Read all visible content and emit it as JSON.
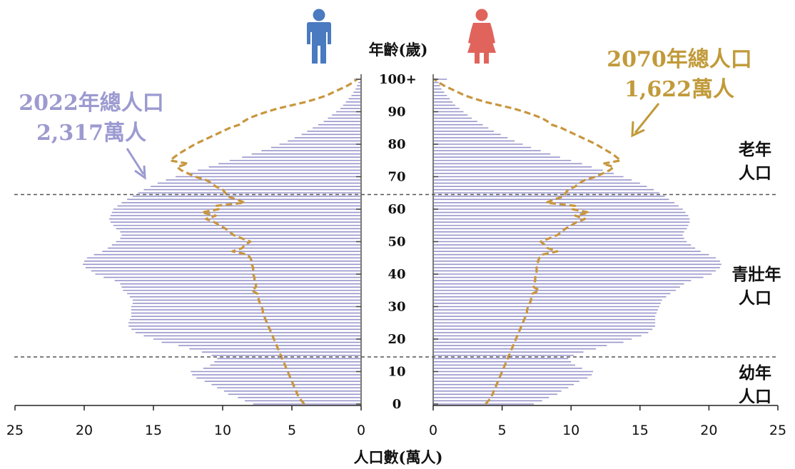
{
  "chart_data": {
    "type": "population-pyramid",
    "title": "",
    "center_axis_title": "年齡(歲)",
    "x_axis_title": "人口數(萬人)",
    "x_ticks_left": [
      "25",
      "20",
      "15",
      "10",
      "5",
      "0"
    ],
    "x_ticks_right": [
      "0",
      "5",
      "10",
      "15",
      "20",
      "25"
    ],
    "xlim": [
      0,
      25
    ],
    "age_ticks": [
      "0",
      "10",
      "20",
      "30",
      "40",
      "50",
      "60",
      "70",
      "80",
      "90",
      "100+"
    ],
    "age_range": [
      0,
      100
    ],
    "age_group_boundaries": [
      14.5,
      64.5
    ],
    "age_group_labels": [
      {
        "line1": "老年",
        "line2": "人口"
      },
      {
        "line1": "青壯年",
        "line2": "人口"
      },
      {
        "line1": "幼年",
        "line2": "人口"
      }
    ],
    "callouts": {
      "2022": {
        "line1": "2022年總人口",
        "line2": "2,317萬人"
      },
      "2070": {
        "line1": "2070年總人口",
        "line2": "1,622萬人"
      }
    },
    "colors": {
      "bars_2022": "#9896cc",
      "line_2070": "#c8963e",
      "male_icon": "#4a7ac0",
      "female_icon": "#e0645c",
      "divider": "#555555"
    },
    "series": [
      {
        "year": "2022",
        "style": "bars",
        "male": [
          7.8,
          8.4,
          8.9,
          9.6,
          9.9,
          10.4,
          10.8,
          11.3,
          11.9,
          12.2,
          12.3,
          11.4,
          10.9,
          10.6,
          10.4,
          10.8,
          11.5,
          12.4,
          13.2,
          14.4,
          15.0,
          15.7,
          16.3,
          16.6,
          16.8,
          16.8,
          16.7,
          16.6,
          16.6,
          16.6,
          16.6,
          16.5,
          16.5,
          16.7,
          16.9,
          17.2,
          17.3,
          17.4,
          17.8,
          18.6,
          19.2,
          19.5,
          19.9,
          20.1,
          20.0,
          19.8,
          19.3,
          18.7,
          18.3,
          18.0,
          17.7,
          17.4,
          17.3,
          17.4,
          17.7,
          17.9,
          18.1,
          18.2,
          18.1,
          18.0,
          17.9,
          17.6,
          17.3,
          16.9,
          16.5,
          16.1,
          15.7,
          15.2,
          14.7,
          14.1,
          13.4,
          12.6,
          11.8,
          11.0,
          10.3,
          9.5,
          8.6,
          7.9,
          7.2,
          6.5,
          5.9,
          5.3,
          4.8,
          4.3,
          3.9,
          3.5,
          3.1,
          2.7,
          2.4,
          2.1,
          1.8,
          1.5,
          1.3,
          1.1,
          0.9,
          0.7,
          0.55,
          0.4,
          0.3,
          0.2,
          0.5
        ],
        "female": [
          7.3,
          7.9,
          8.4,
          9.0,
          9.3,
          9.8,
          10.2,
          10.6,
          11.2,
          11.5,
          11.6,
          10.8,
          10.3,
          10.0,
          9.8,
          10.2,
          10.9,
          11.8,
          12.6,
          13.8,
          14.4,
          15.1,
          15.6,
          15.9,
          16.1,
          16.1,
          16.1,
          16.1,
          16.2,
          16.3,
          16.4,
          16.5,
          16.6,
          16.9,
          17.2,
          17.6,
          17.9,
          18.2,
          18.7,
          19.6,
          20.2,
          20.5,
          20.8,
          20.9,
          20.8,
          20.5,
          20.0,
          19.4,
          19.0,
          18.7,
          18.4,
          18.2,
          18.1,
          18.2,
          18.4,
          18.5,
          18.6,
          18.6,
          18.5,
          18.3,
          18.1,
          17.8,
          17.5,
          17.1,
          16.8,
          16.4,
          16.0,
          15.5,
          15.0,
          14.4,
          13.8,
          13.1,
          12.3,
          11.5,
          10.8,
          10.0,
          9.2,
          8.5,
          7.8,
          7.1,
          6.5,
          5.9,
          5.4,
          4.9,
          4.4,
          4.0,
          3.6,
          3.2,
          2.8,
          2.5,
          2.2,
          1.9,
          1.6,
          1.4,
          1.2,
          1.0,
          0.8,
          0.6,
          0.5,
          0.4,
          1.0
        ]
      },
      {
        "year": "2070",
        "style": "dashed-line",
        "male": [
          4.1,
          4.3,
          4.5,
          4.6,
          4.7,
          4.8,
          4.9,
          5.0,
          5.1,
          5.2,
          5.3,
          5.4,
          5.5,
          5.6,
          5.7,
          5.8,
          5.9,
          6.0,
          6.1,
          6.2,
          6.3,
          6.4,
          6.5,
          6.6,
          6.7,
          6.8,
          6.9,
          7.0,
          7.1,
          7.1,
          7.2,
          7.3,
          7.4,
          7.4,
          7.5,
          7.9,
          7.6,
          7.6,
          7.7,
          7.7,
          7.8,
          7.8,
          7.8,
          7.9,
          7.9,
          8.0,
          8.2,
          9.3,
          8.6,
          8.4,
          8.0,
          8.6,
          9.2,
          9.5,
          9.8,
          10.2,
          10.6,
          11.2,
          10.5,
          11.5,
          10.3,
          10.5,
          8.4,
          9.0,
          9.7,
          9.8,
          10.0,
          10.5,
          10.8,
          11.2,
          12.0,
          12.5,
          13.0,
          13.3,
          12.5,
          13.8,
          13.5,
          13.2,
          12.8,
          12.4,
          12.0,
          11.5,
          11.0,
          10.5,
          10.0,
          9.5,
          8.8,
          8.5,
          8.1,
          7.5,
          6.8,
          6.0,
          5.0,
          4.0,
          3.2,
          2.5,
          2.0,
          1.5,
          1.0,
          0.6,
          0.3
        ],
        "female": [
          3.8,
          4.0,
          4.2,
          4.3,
          4.4,
          4.5,
          4.6,
          4.7,
          4.8,
          4.9,
          5.0,
          5.1,
          5.2,
          5.3,
          5.4,
          5.5,
          5.6,
          5.7,
          5.8,
          5.9,
          6.0,
          6.1,
          6.2,
          6.3,
          6.4,
          6.5,
          6.6,
          6.7,
          6.8,
          6.8,
          6.9,
          7.0,
          7.1,
          7.1,
          7.2,
          7.7,
          7.3,
          7.3,
          7.4,
          7.4,
          7.5,
          7.5,
          7.5,
          7.6,
          7.6,
          7.7,
          7.9,
          9.0,
          8.3,
          8.1,
          7.8,
          8.4,
          9.0,
          9.3,
          9.6,
          10.0,
          10.4,
          11.0,
          10.3,
          11.3,
          10.1,
          10.3,
          8.2,
          8.8,
          9.5,
          9.6,
          9.8,
          10.3,
          10.6,
          11.0,
          11.8,
          12.3,
          12.8,
          13.1,
          12.3,
          13.6,
          13.3,
          13.0,
          12.6,
          12.2,
          11.8,
          11.3,
          10.8,
          10.3,
          9.8,
          9.3,
          8.6,
          8.3,
          7.9,
          7.3,
          6.6,
          5.8,
          4.8,
          3.8,
          3.0,
          2.3,
          1.8,
          1.3,
          0.8,
          0.4,
          0.1
        ]
      }
    ]
  }
}
